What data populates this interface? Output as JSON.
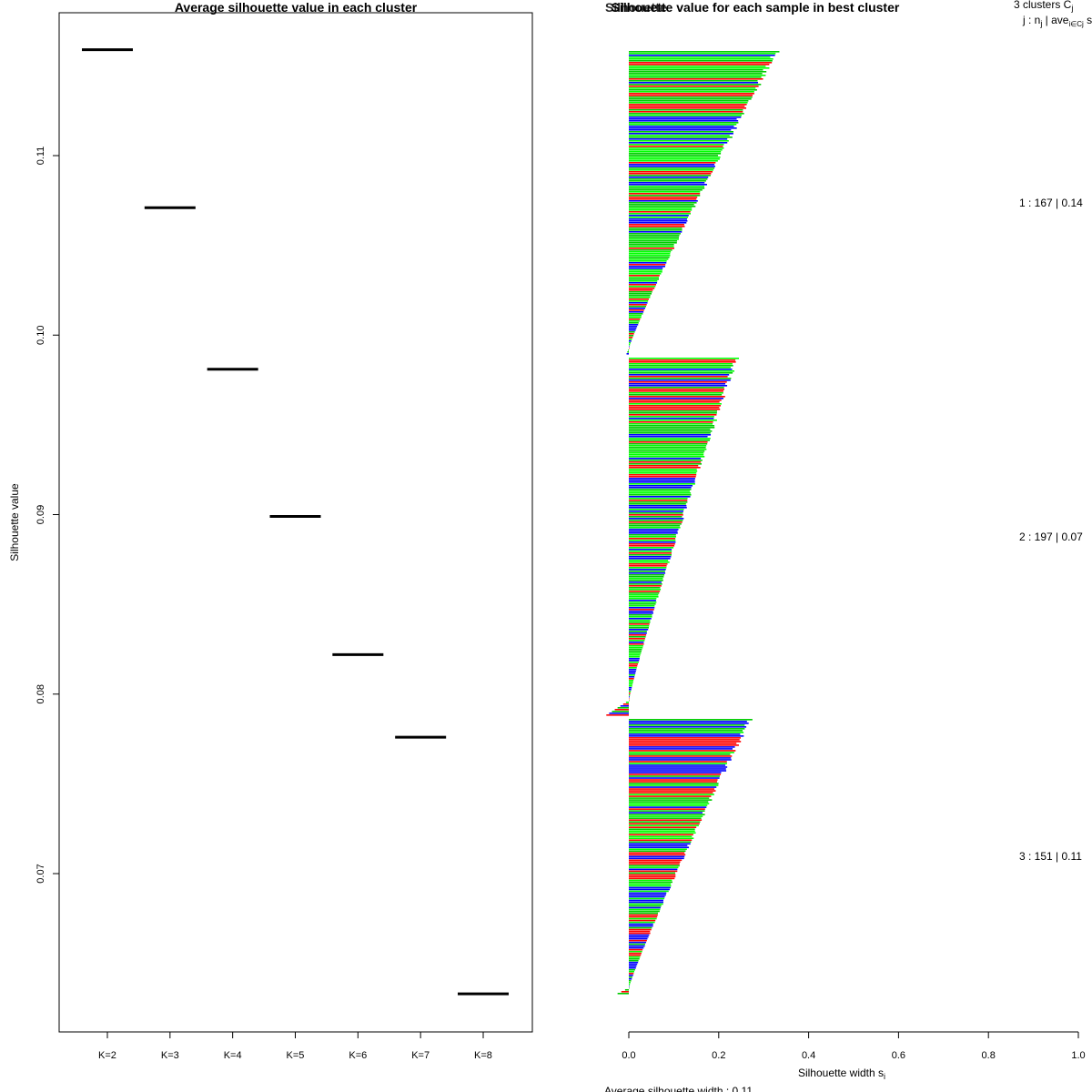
{
  "chart_data": [
    {
      "type": "line",
      "title": "Average silhouette value in each cluster",
      "ylabel": "Silhouette value",
      "xlabel": "",
      "categories": [
        "K=2",
        "K=3",
        "K=4",
        "K=5",
        "K=6",
        "K=7",
        "K=8"
      ],
      "values": [
        0.1159,
        0.1071,
        0.0981,
        0.0899,
        0.0822,
        0.0776,
        0.0633
      ],
      "ylim": [
        0.062,
        0.118
      ],
      "yticks": [
        "0.07",
        "0.08",
        "0.09",
        "0.10",
        "0.11"
      ],
      "ytick_values": [
        0.07,
        0.08,
        0.09,
        0.1,
        0.11
      ]
    },
    {
      "type": "bar",
      "title": "Silhouette value for each sample in best cluster",
      "overlapping_title": "Silhouette",
      "xlabel": "Silhouette width s",
      "xlabel_sub": "i",
      "xlim": [
        0.0,
        1.0
      ],
      "xticks": [
        "0.0",
        "0.2",
        "0.4",
        "0.6",
        "0.8",
        "1.0"
      ],
      "xtick_values": [
        0.0,
        0.2,
        0.4,
        0.6,
        0.8,
        1.0
      ],
      "bar_colors": [
        "#ff0000",
        "#00cc00",
        "#0000ff",
        "#00ff00"
      ],
      "legend_header": "3 clusters C",
      "legend_header_sub": "j",
      "legend_subheader": "j : n",
      "legend_subheader_rest": " | ave",
      "legend_subheader_tail": " s",
      "legend_sub_j": "j",
      "legend_sub_icj": "i∈Cj",
      "clusters": [
        {
          "label": "1 :  167  |  0.14",
          "n": 167,
          "max": 0.335,
          "min": -0.005,
          "neg_tail": 0.012
        },
        {
          "label": "2 :  197  |  0.07",
          "n": 197,
          "max": 0.245,
          "min": -0.05,
          "neg_tail": 0.04
        },
        {
          "label": "3 :  151  |  0.11",
          "n": 151,
          "max": 0.275,
          "min": -0.025,
          "neg_tail": 0.02
        }
      ],
      "footer": "Average silhouette width :  0.11"
    }
  ]
}
